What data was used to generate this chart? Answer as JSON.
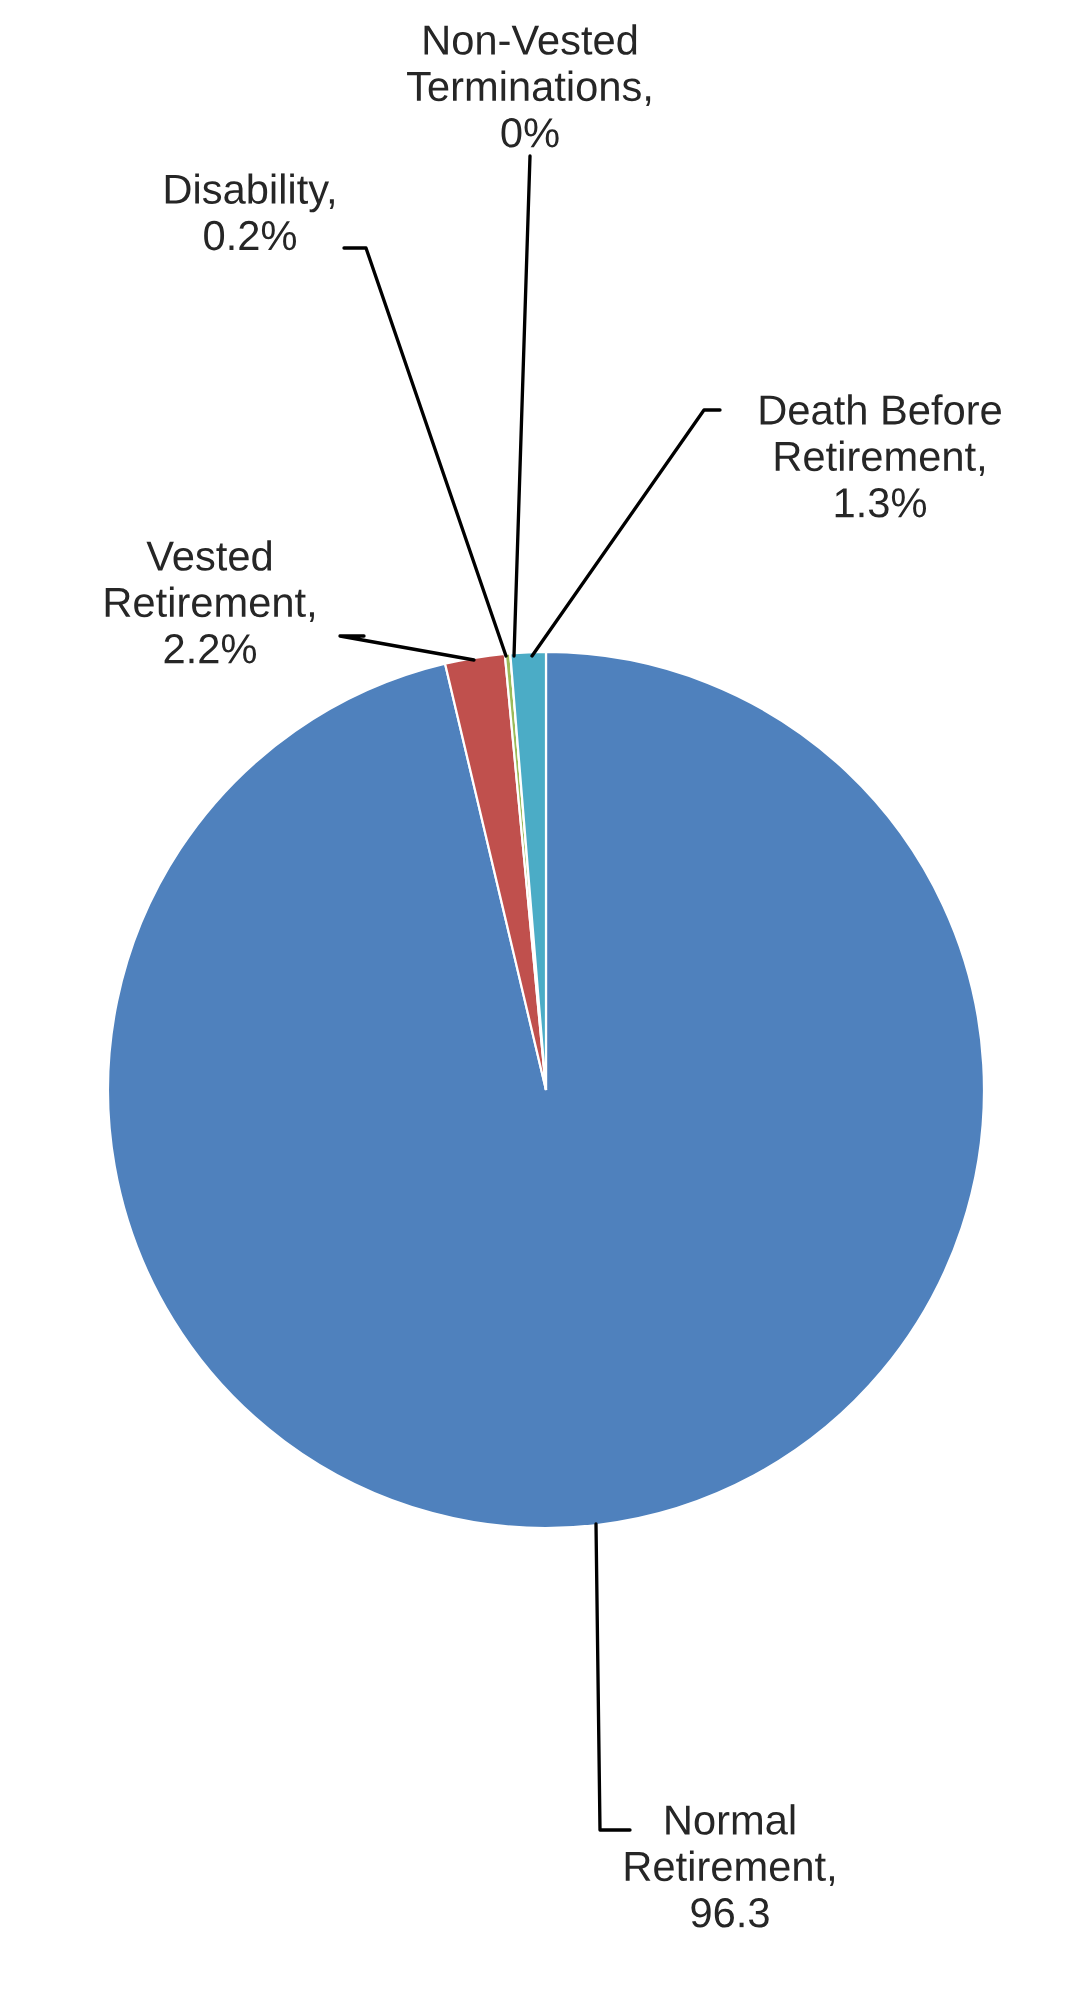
{
  "chart_data": {
    "type": "pie",
    "categories": [
      "Normal Retirement, 96.3",
      "Vested Retirement, 2.2%",
      "Disability, 0.2%",
      "Non-Vested Terminations, 0%",
      "Death Before Retirement, 1.3%"
    ],
    "values": [
      96.3,
      2.2,
      0.2,
      0,
      1.3
    ],
    "colors": [
      "#4f81bd",
      "#c0504d",
      "#9bbb59",
      "#8064a2",
      "#4bacc6"
    ],
    "legend": false
  }
}
